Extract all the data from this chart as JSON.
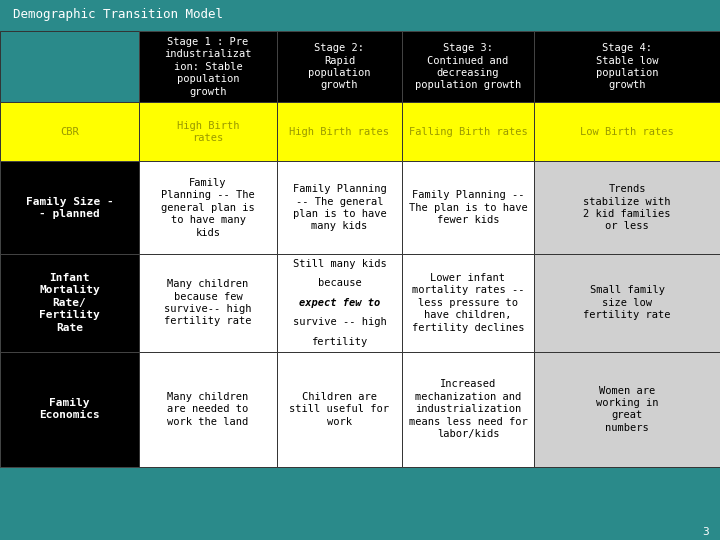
{
  "title": "Demographic Transition Model",
  "bg_color": "#2a8a8a",
  "title_color": "#ffffff",
  "title_fontsize": 9,
  "header_bg": "#000000",
  "header_color": "#ffffff",
  "header_fontsize": 7.5,
  "cbr_bg": "#ffff00",
  "cbr_color": "#999900",
  "cbr_fontsize": 7.5,
  "row_label_bg": "#000000",
  "row_label_color": "#ffffff",
  "row_label_fontsize": 8,
  "cell_fontsize": 7.5,
  "cell_color": "#000000",
  "col_headers": [
    "Stage 1 : Pre\nindustrializat\nion: Stable\npopulation\ngrowth",
    "Stage 2:\nRapid\npopulation\ngrowth",
    "Stage 3:\nContinued and\ndecreasing\npopulation growth",
    "Stage 4:\nStable low\npopulation\ngrowth"
  ],
  "cbr_cells": [
    "High Birth\nrates",
    "High Birth rates",
    "Falling Birth rates",
    "Low Birth rates"
  ],
  "row_labels": [
    "Family Size -\n- planned",
    "Infant\nMortality\nRate/\nFertility\nRate",
    "Family\nEconomics"
  ],
  "data_cells": [
    [
      "Family\nPlanning -- The\ngeneral plan is\nto have many\nkids",
      "Family Planning\n-- The general\nplan is to have\nmany kids",
      "Family Planning --\nThe plan is to have\nfewer kids",
      "Trends\nstabilize with\n2 kid families\nor less"
    ],
    [
      "Many children\nbecause few\nsurvive-- high\nfertility rate",
      "Still many kids\nbecause\nexpect few to\nsurvive -- high\nfertility",
      "Lower infant\nmortality rates --\nless pressure to\nhave children,\nfertility declines",
      "Small family\nsize low\nfertility rate"
    ],
    [
      "Many children\nare needed to\nwork the land",
      "Children are\nstill useful for\nwork",
      "Increased\nmechanization and\nindustrialization\nmeans less need for\nlabor/kids",
      "Women are\nworking in\ngreat\nnumbers"
    ]
  ],
  "col_bounds": [
    0.0,
    0.193,
    0.385,
    0.558,
    0.742,
    1.0
  ],
  "row_bounds": [
    1.0,
    0.858,
    0.74,
    0.555,
    0.36,
    0.13,
    0.0
  ],
  "cell_bg": [
    [
      "#ffffff",
      "#ffffff",
      "#ffffff",
      "#d0d0d0"
    ],
    [
      "#ffffff",
      "#ffffff",
      "#ffffff",
      "#d0d0d0"
    ],
    [
      "#ffffff",
      "#ffffff",
      "#ffffff",
      "#d0d0d0"
    ]
  ],
  "page_num": "3"
}
